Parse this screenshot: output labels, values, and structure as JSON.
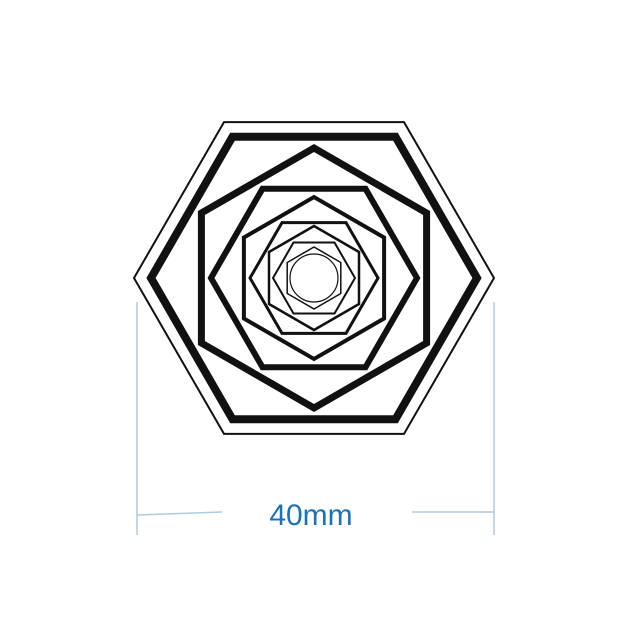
{
  "dimension": {
    "label": "40mm"
  },
  "colors": {
    "line": "#111111",
    "dimension_line": "#aecbe0",
    "dimension_text": "#1a73b8"
  }
}
